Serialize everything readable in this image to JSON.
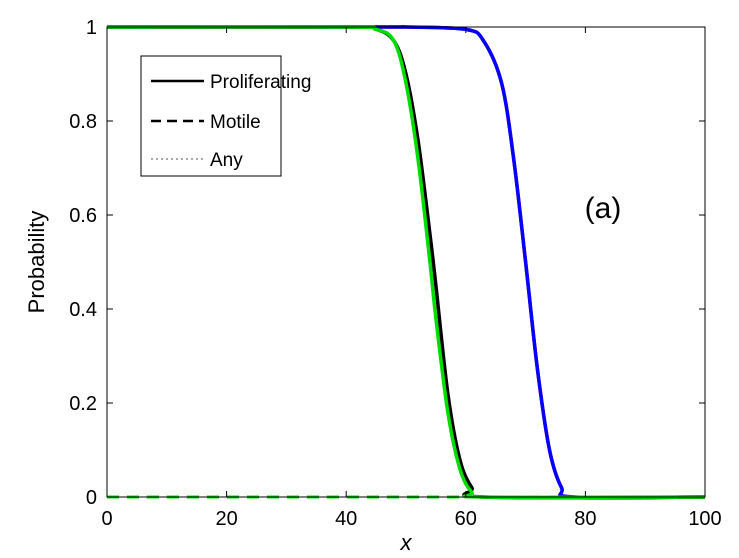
{
  "chart_data": {
    "type": "line",
    "xlabel": "x",
    "ylabel": "Probability",
    "xlim": [
      0,
      100
    ],
    "ylim": [
      0,
      1
    ],
    "xticks": [
      "0",
      "20",
      "40",
      "60",
      "80",
      "100"
    ],
    "yticks": [
      "0",
      "0.2",
      "0.4",
      "0.6",
      "0.8",
      "1"
    ],
    "grid": false,
    "legend": {
      "placement": "top-left",
      "entries": [
        {
          "label": "Proliferating",
          "style": "solid",
          "color": "#000000"
        },
        {
          "label": "Motile",
          "style": "dashed",
          "color": "#000000"
        },
        {
          "label": "Any",
          "style": "dotted",
          "color": "#aaaaaa"
        }
      ]
    },
    "annotation": "(a)",
    "series": [
      {
        "style": "solid",
        "color": "#ff0000",
        "x": [
          0,
          45,
          50,
          60,
          63,
          66,
          68,
          70,
          72,
          74,
          76,
          78,
          100
        ],
        "y": [
          1,
          1,
          1,
          0.995,
          0.97,
          0.88,
          0.72,
          0.5,
          0.27,
          0.1,
          0.02,
          0,
          0
        ]
      },
      {
        "style": "solid",
        "color": "#0000ff",
        "x": [
          0,
          45,
          50,
          60,
          63,
          66,
          68,
          70,
          72,
          74,
          76,
          78,
          100
        ],
        "y": [
          1,
          1,
          1,
          0.995,
          0.97,
          0.88,
          0.72,
          0.5,
          0.27,
          0.1,
          0.02,
          0,
          0
        ]
      },
      {
        "style": "solid",
        "color": "#000000",
        "x": [
          0,
          40,
          45,
          48,
          50,
          52,
          54,
          55,
          57,
          59,
          61,
          63,
          100
        ],
        "y": [
          1,
          1,
          0.995,
          0.97,
          0.9,
          0.76,
          0.56,
          0.45,
          0.22,
          0.08,
          0.02,
          0,
          0
        ]
      },
      {
        "style": "solid",
        "color": "#00dd00",
        "x": [
          0,
          40,
          45,
          48,
          50,
          52,
          54,
          55,
          57,
          59,
          61,
          63,
          100
        ],
        "y": [
          1,
          1,
          0.995,
          0.97,
          0.88,
          0.72,
          0.5,
          0.38,
          0.18,
          0.06,
          0.01,
          0,
          0
        ]
      },
      {
        "style": "dashed",
        "color": "#ff0000",
        "x": [
          0,
          100
        ],
        "y": [
          0,
          0
        ]
      },
      {
        "style": "dashed",
        "color": "#00dd00",
        "x": [
          0,
          100
        ],
        "y": [
          0,
          0
        ]
      }
    ]
  }
}
